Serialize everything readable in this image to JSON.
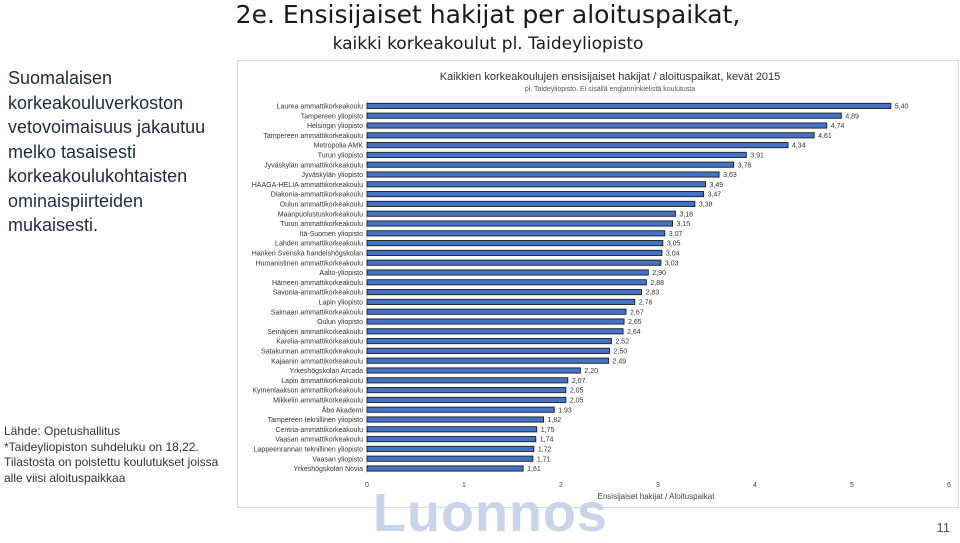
{
  "slide": {
    "title": "2e. Ensisijaiset hakijat per aloituspaikat,",
    "subtitle": "kaikki korkeakoulut pl. Taideyliopisto",
    "body_text": "Suomalaisen korkeakouluverkoston vetovoimaisuus jakautuu melko tasaisesti korkeakoulukohtaisten ominaispiirteiden mukaisesti.",
    "source_line1": "Lähde: Opetushallitus",
    "source_line2": "*Taideyliopiston suhdeluku on 18,22.",
    "source_line3": "Tilastosta on poistettu koulutukset joissa alle viisi aloituspaikkaa",
    "watermark": "Luonnos",
    "page_number": "11"
  },
  "colors": {
    "bar": "#4472c4",
    "bar_edge": "#1f1f1f"
  },
  "chart_data": {
    "type": "bar",
    "orientation": "horizontal",
    "title": "Kaikkien korkeakoulujen ensisijaiset hakijat / aloituspaikat, kevät 2015",
    "subtitle": "pl. Taideyliopisto. Ei sisällä englanninkielistä koulutusta",
    "xlabel": "Ensisijaiset hakijat / Aloituspaikat",
    "ylabel": "",
    "xlim": [
      0,
      6
    ],
    "xticks": [
      "0",
      "1",
      "2",
      "3",
      "4",
      "5",
      "6"
    ],
    "grid": false,
    "categories": [
      "Laurea ammattikorkeakoulu",
      "Tampereen yliopisto",
      "Helsingin yliopisto",
      "Tampereen ammattikorkeakoulu",
      "Metropolia AMK",
      "Turun yliopisto",
      "Jyväskylän ammattikorkeakoulu",
      "Jyväskylän yliopisto",
      "HAAGA-HELIA ammattikorkeakoulu",
      "Diakonia-ammattikorkeakoulu",
      "Oulun ammattikorkeakoulu",
      "Maanpuolustuskorkeakoulu",
      "Turun ammattikorkeakoulu",
      "Itä-Suomen yliopisto",
      "Lahden ammattikorkeakoulu",
      "Hanken Svenska handelshögskolan",
      "Humanistinen ammattikorkeakoulu",
      "Aalto-yliopisto",
      "Hämeen ammattikorkeakoulu",
      "Savonia-ammattikorkeakoulu",
      "Lapin yliopisto",
      "Saimaan ammattikorkeakoulu",
      "Oulun yliopisto",
      "Seinäjoen ammattikorkeakoulu",
      "Karelia-ammattikorkeakoulu",
      "Satakunnan ammattikorkeakoulu",
      "Kajaanin ammattikorkeakoulu",
      "Yrkeshögskolan Arcada",
      "Lapin ammattikorkeakoulu",
      "Kymenlaakson ammattikorkeakoulu",
      "Mikkelin ammattikorkeakoulu",
      "Åbo Akademi",
      "Tampereen teknillinen yliopisto",
      "Centria-ammattikorkeakoulu",
      "Vaasan ammattikorkeakoulu",
      "Lappeenrannan teknillinen yliopisto",
      "Vaasan yliopisto",
      "Yrkeshögskolan Novia"
    ],
    "values": [
      5.4,
      4.89,
      4.74,
      4.61,
      4.34,
      3.91,
      3.78,
      3.63,
      3.49,
      3.47,
      3.38,
      3.18,
      3.15,
      3.07,
      3.05,
      3.04,
      3.03,
      2.9,
      2.88,
      2.83,
      2.76,
      2.67,
      2.65,
      2.64,
      2.52,
      2.5,
      2.49,
      2.2,
      2.07,
      2.05,
      2.05,
      1.93,
      1.82,
      1.75,
      1.74,
      1.72,
      1.71,
      1.61
    ],
    "value_labels": [
      "5,40",
      "4,89",
      "4,74",
      "4,61",
      "4,34",
      "3,91",
      "3,78",
      "3,63",
      "3,49",
      "3,47",
      "3,38",
      "3,18",
      "3,15",
      "3,07",
      "3,05",
      "3,04",
      "3,03",
      "2,90",
      "2,88",
      "2,83",
      "2,76",
      "2,67",
      "2,65",
      "2,64",
      "2,52",
      "2,50",
      "2,49",
      "2,20",
      "2,07",
      "2,05",
      "2,05",
      "1,93",
      "1,82",
      "1,75",
      "1,74",
      "1,72",
      "1,71",
      "1,61"
    ]
  }
}
